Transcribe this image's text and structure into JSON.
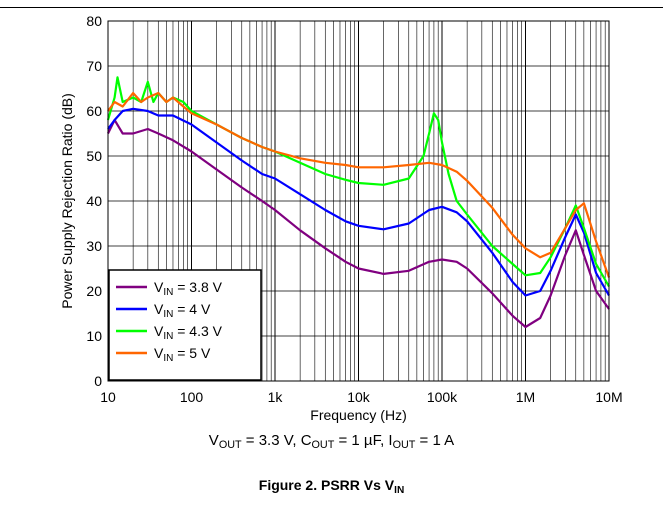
{
  "chart_data": {
    "type": "line",
    "xscale": "log",
    "xlim": [
      10,
      10000000
    ],
    "ylim": [
      0,
      80
    ],
    "xlabel": "Frequency (Hz)",
    "ylabel": "Power Supply Rejection Ratio (dB)",
    "x_ticks": [
      10,
      100,
      1000,
      10000,
      100000,
      1000000,
      10000000
    ],
    "x_tick_labels": [
      "10",
      "100",
      "1k",
      "10k",
      "100k",
      "1M",
      "10M"
    ],
    "y_ticks": [
      0,
      10,
      20,
      30,
      40,
      50,
      60,
      70,
      80
    ],
    "y_tick_labels": [
      "0",
      "10",
      "20",
      "30",
      "40",
      "50",
      "60",
      "70",
      "80"
    ],
    "grid": true,
    "legend_position": "bottom-left",
    "series": [
      {
        "name": "VIN = 3.8 V",
        "legend_main": "V",
        "legend_sub": "IN",
        "legend_rest": " = 3.8 V",
        "color": "#800080",
        "points": [
          [
            10,
            55
          ],
          [
            12,
            58
          ],
          [
            15,
            55
          ],
          [
            20,
            55
          ],
          [
            30,
            56
          ],
          [
            40,
            55
          ],
          [
            60,
            53.5
          ],
          [
            100,
            51
          ],
          [
            200,
            47
          ],
          [
            400,
            43
          ],
          [
            700,
            40
          ],
          [
            1000,
            38
          ],
          [
            2000,
            33.5
          ],
          [
            4000,
            29.5
          ],
          [
            7000,
            26.5
          ],
          [
            10000,
            25
          ],
          [
            20000,
            23.8
          ],
          [
            40000,
            24.5
          ],
          [
            70000,
            26.5
          ],
          [
            100000,
            27
          ],
          [
            150000,
            26.5
          ],
          [
            200000,
            25
          ],
          [
            400000,
            19.5
          ],
          [
            700000,
            14.5
          ],
          [
            1000000,
            12
          ],
          [
            1500000,
            14
          ],
          [
            2000000,
            19
          ],
          [
            3000000,
            28
          ],
          [
            4000000,
            33.5
          ],
          [
            5000000,
            28
          ],
          [
            7000000,
            20
          ],
          [
            10000000,
            16
          ]
        ]
      },
      {
        "name": "VIN = 4 V",
        "legend_main": "V",
        "legend_sub": "IN",
        "legend_rest": " = 4 V",
        "color": "#0000ff",
        "points": [
          [
            10,
            56
          ],
          [
            12,
            58
          ],
          [
            15,
            60
          ],
          [
            20,
            60.5
          ],
          [
            30,
            60
          ],
          [
            40,
            59
          ],
          [
            60,
            59
          ],
          [
            100,
            57
          ],
          [
            200,
            53
          ],
          [
            400,
            49
          ],
          [
            700,
            46
          ],
          [
            1000,
            45
          ],
          [
            2000,
            41.5
          ],
          [
            4000,
            38
          ],
          [
            7000,
            35.5
          ],
          [
            10000,
            34.5
          ],
          [
            20000,
            33.7
          ],
          [
            40000,
            35
          ],
          [
            70000,
            38
          ],
          [
            100000,
            38.7
          ],
          [
            150000,
            37.5
          ],
          [
            200000,
            35.5
          ],
          [
            400000,
            28.5
          ],
          [
            700000,
            22
          ],
          [
            1000000,
            19
          ],
          [
            1500000,
            20
          ],
          [
            2000000,
            24.5
          ],
          [
            3000000,
            32
          ],
          [
            4000000,
            37
          ],
          [
            5000000,
            33
          ],
          [
            7000000,
            24
          ],
          [
            10000000,
            19
          ]
        ]
      },
      {
        "name": "VIN = 4.3 V",
        "legend_main": "V",
        "legend_sub": "IN",
        "legend_rest": " = 4.3 V",
        "color": "#00ff00",
        "points": [
          [
            10,
            58
          ],
          [
            12,
            63
          ],
          [
            13,
            67.5
          ],
          [
            15,
            62
          ],
          [
            20,
            63
          ],
          [
            25,
            62
          ],
          [
            30,
            66.5
          ],
          [
            35,
            62
          ],
          [
            40,
            64
          ],
          [
            50,
            62
          ],
          [
            60,
            63
          ],
          [
            80,
            62
          ],
          [
            100,
            60
          ],
          [
            200,
            57
          ],
          [
            400,
            54
          ],
          [
            700,
            52
          ],
          [
            1000,
            51
          ],
          [
            2000,
            48.5
          ],
          [
            4000,
            46
          ],
          [
            7000,
            44.7
          ],
          [
            10000,
            44
          ],
          [
            20000,
            43.6
          ],
          [
            40000,
            45
          ],
          [
            60000,
            50
          ],
          [
            70000,
            55
          ],
          [
            80000,
            59.5
          ],
          [
            90000,
            58
          ],
          [
            100000,
            53
          ],
          [
            120000,
            46
          ],
          [
            150000,
            40
          ],
          [
            200000,
            37
          ],
          [
            400000,
            30
          ],
          [
            700000,
            26
          ],
          [
            1000000,
            23.5
          ],
          [
            1500000,
            24
          ],
          [
            2000000,
            27.5
          ],
          [
            3000000,
            34
          ],
          [
            4000000,
            39
          ],
          [
            5000000,
            34
          ],
          [
            7000000,
            26
          ],
          [
            10000000,
            21
          ]
        ]
      },
      {
        "name": "VIN = 5 V",
        "legend_main": "V",
        "legend_sub": "IN",
        "legend_rest": " = 5 V",
        "color": "#ff6600",
        "points": [
          [
            10,
            60
          ],
          [
            12,
            62
          ],
          [
            15,
            61
          ],
          [
            20,
            64
          ],
          [
            25,
            62
          ],
          [
            30,
            63
          ],
          [
            40,
            64
          ],
          [
            50,
            62
          ],
          [
            60,
            63
          ],
          [
            80,
            61
          ],
          [
            100,
            59.5
          ],
          [
            200,
            57
          ],
          [
            400,
            54
          ],
          [
            700,
            52
          ],
          [
            1000,
            51
          ],
          [
            2000,
            49.5
          ],
          [
            4000,
            48.5
          ],
          [
            7000,
            48
          ],
          [
            10000,
            47.5
          ],
          [
            20000,
            47.5
          ],
          [
            40000,
            48
          ],
          [
            70000,
            48.5
          ],
          [
            100000,
            48
          ],
          [
            150000,
            46.5
          ],
          [
            200000,
            44.5
          ],
          [
            400000,
            38.5
          ],
          [
            700000,
            32.5
          ],
          [
            1000000,
            29.5
          ],
          [
            1500000,
            27.5
          ],
          [
            2000000,
            28.5
          ],
          [
            3000000,
            34
          ],
          [
            4000000,
            38
          ],
          [
            5000000,
            39.5
          ],
          [
            7000000,
            31
          ],
          [
            10000000,
            23
          ]
        ]
      }
    ]
  },
  "conditions": {
    "vout_main": "V",
    "vout_sub": "OUT",
    "vout_rest": " = 3.3 V, ",
    "cout_main": "C",
    "cout_sub": "OUT",
    "cout_rest": " = 1 µF, ",
    "iout_main": "I",
    "iout_sub": "OUT",
    "iout_rest": " = 1 A"
  },
  "figure_caption": {
    "main": "Figure 2. PSRR Vs V",
    "sub": "IN"
  }
}
